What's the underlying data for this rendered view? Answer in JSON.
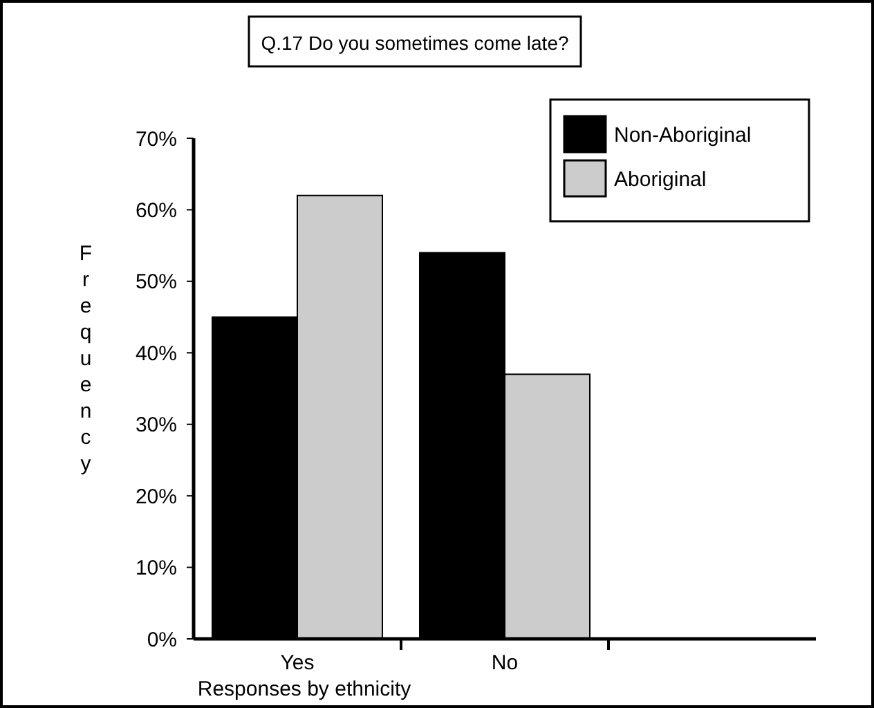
{
  "chart_data": {
    "type": "bar",
    "title": "Q.17 Do you sometimes come late?",
    "xlabel": "Responses by ethnicity",
    "ylabel": "Frequency",
    "categories": [
      "Yes",
      "No",
      null
    ],
    "series": [
      {
        "name": "Non-Aboriginal",
        "color": "#000000",
        "values": [
          45,
          54,
          null
        ]
      },
      {
        "name": "Aboriginal",
        "color": "#cccccc",
        "values": [
          62,
          37,
          null
        ]
      }
    ],
    "ylim": [
      0,
      70
    ],
    "yticks": [
      {
        "value": 0,
        "label": "0%"
      },
      {
        "value": 10,
        "label": "10%"
      },
      {
        "value": 20,
        "label": "20%"
      },
      {
        "value": 30,
        "label": "30%"
      },
      {
        "value": 40,
        "label": "40%"
      },
      {
        "value": 50,
        "label": "50%"
      },
      {
        "value": 60,
        "label": "60%"
      },
      {
        "value": 70,
        "label": "70%"
      }
    ],
    "grid": false,
    "legend": "top right"
  }
}
